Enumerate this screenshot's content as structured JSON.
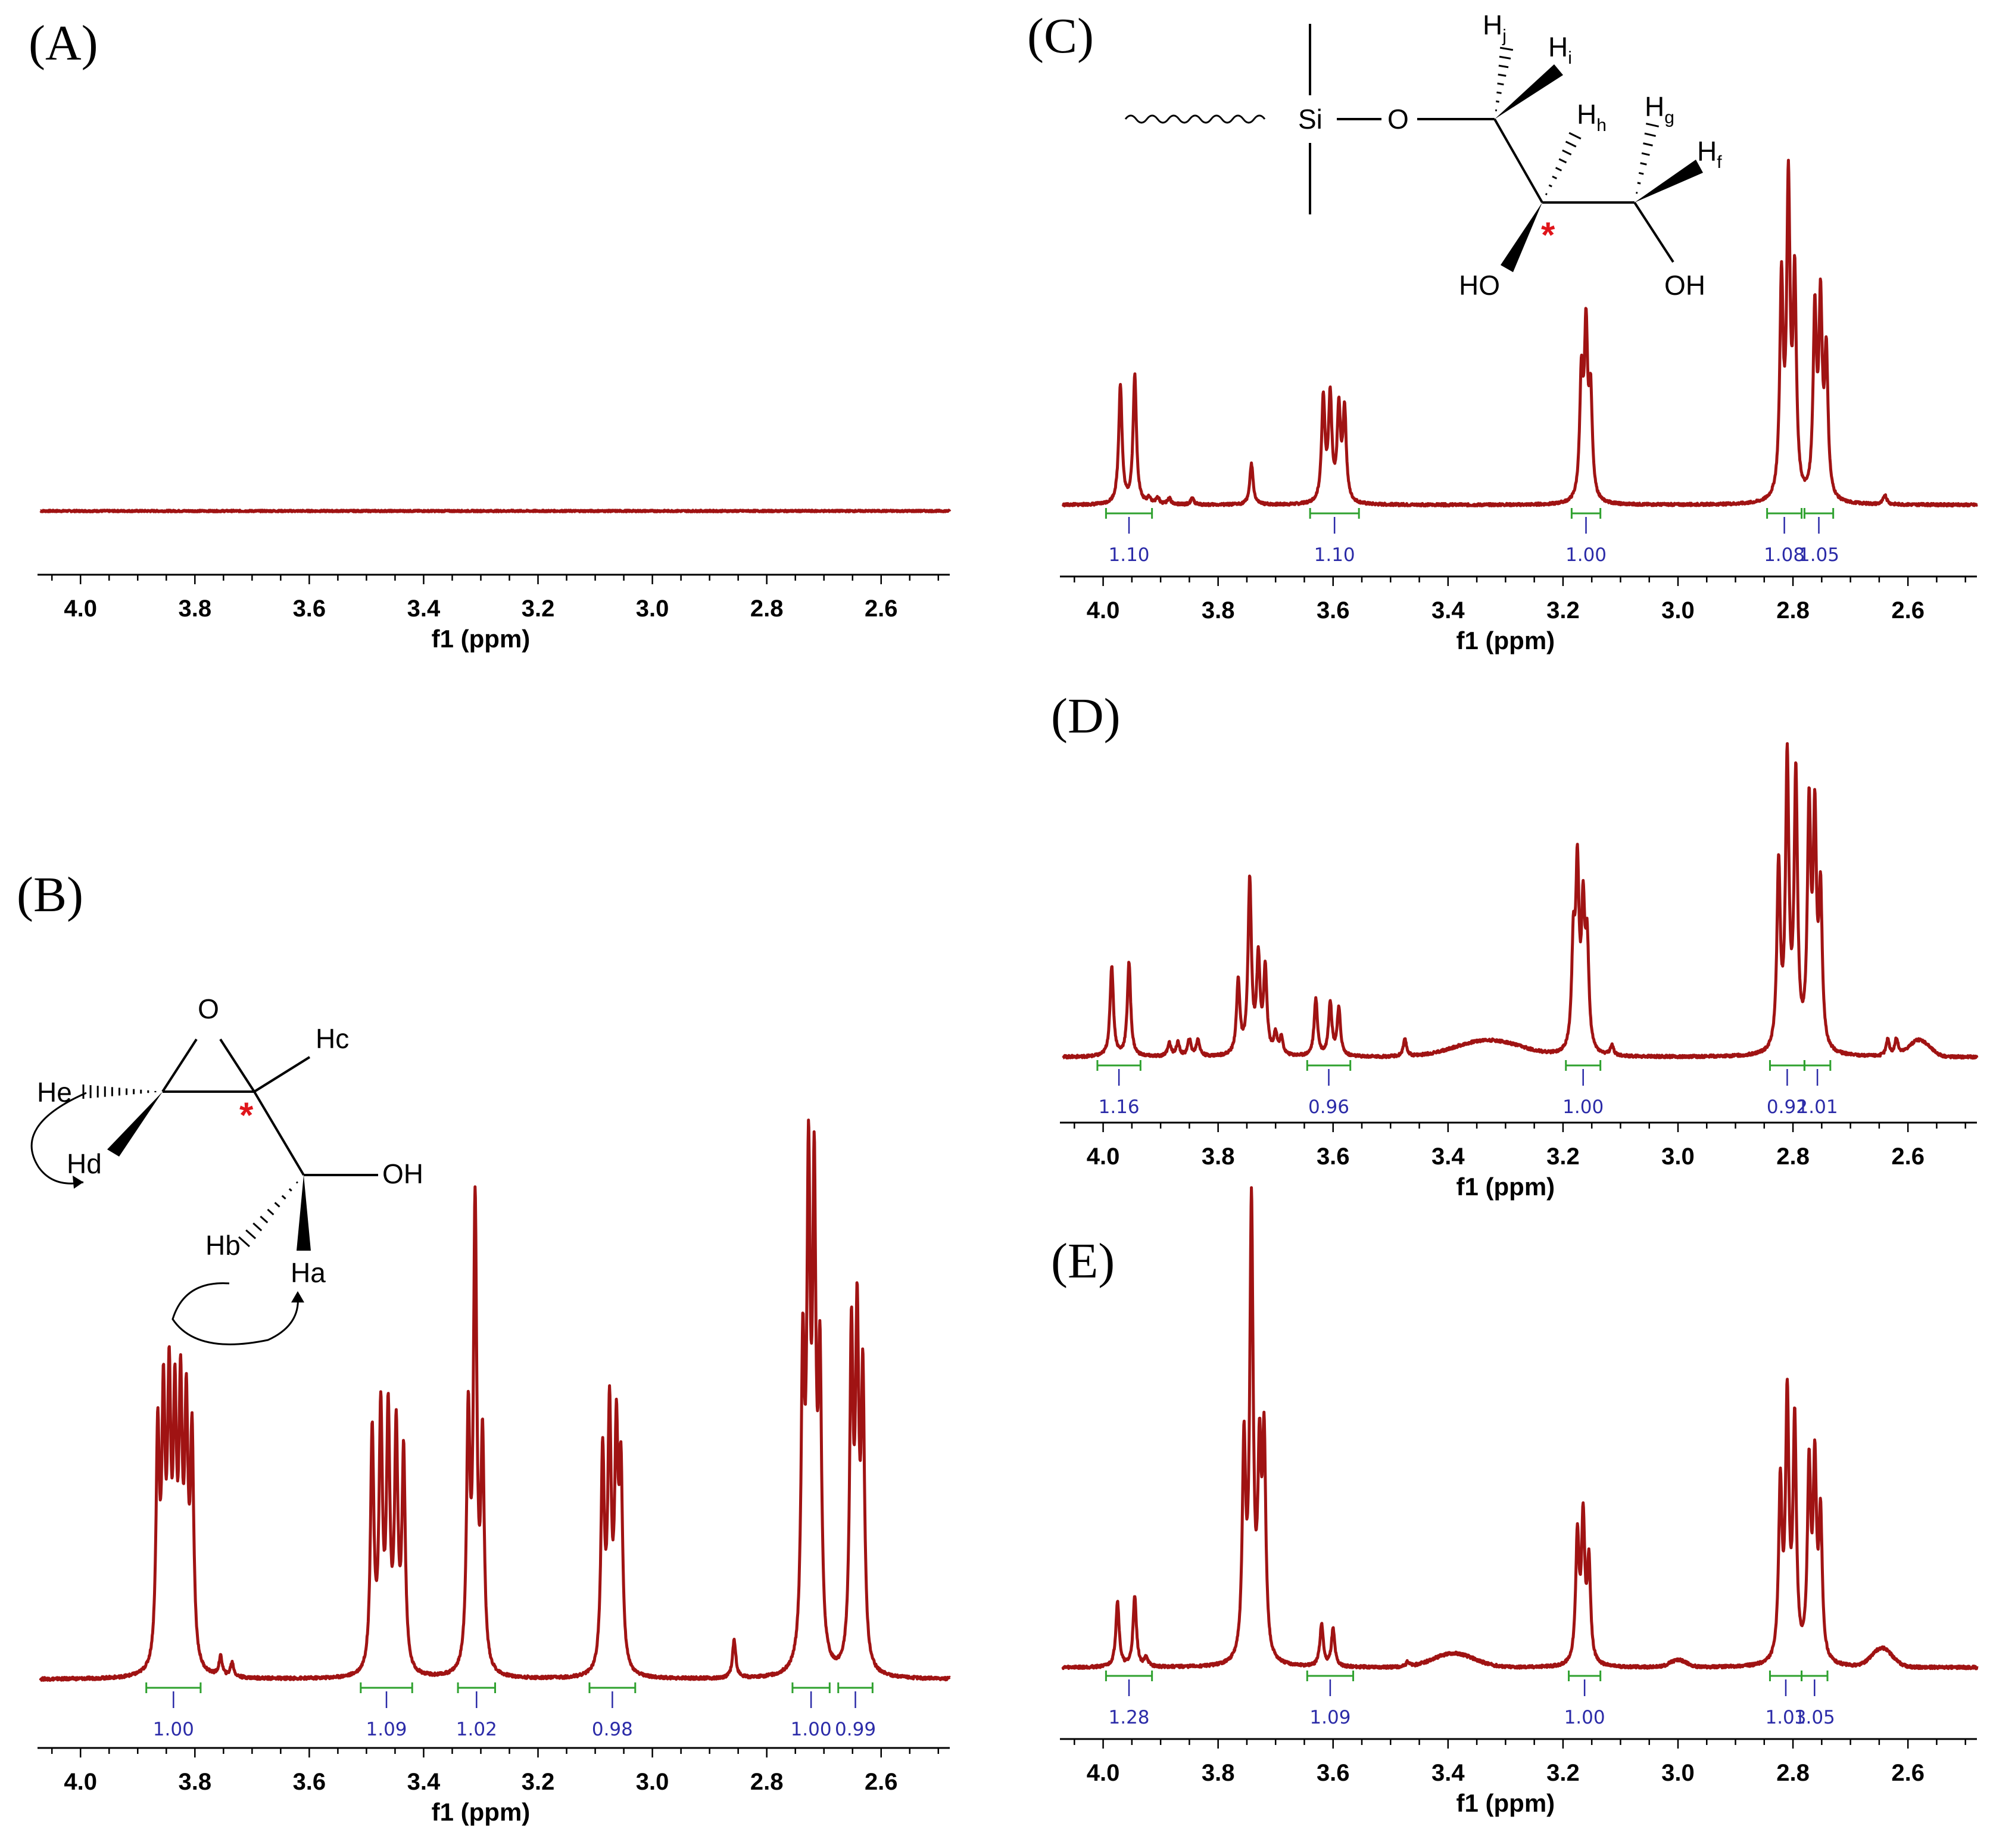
{
  "colors": {
    "spectrum": "#a01313",
    "integral_label": "#2b2ba8",
    "integral_bracket": "#2fa12f",
    "stereocenter": "#e0151b"
  },
  "chart_data": [
    {
      "id": "A",
      "panel_label": "(A)",
      "type": "line",
      "xlabel": "f1 (ppm)",
      "xlim": [
        4.07,
        2.48
      ],
      "ticks": [
        "4.0",
        "3.8",
        "3.6",
        "3.4",
        "3.2",
        "3.0",
        "2.8",
        "2.6"
      ],
      "baseline_noise": 0.002,
      "hump": [],
      "peaks": [],
      "integrals": []
    },
    {
      "id": "B",
      "panel_label": "(B)",
      "type": "line",
      "xlabel": "f1 (ppm)",
      "xlim": [
        4.07,
        2.48
      ],
      "ticks": [
        "4.0",
        "3.8",
        "3.6",
        "3.4",
        "3.2",
        "3.0",
        "2.8",
        "2.6"
      ],
      "baseline_noise": 0.003,
      "hump": [],
      "peaks": [
        [
          3.865,
          0.48
        ],
        [
          3.855,
          0.52
        ],
        [
          3.845,
          0.55
        ],
        [
          3.835,
          0.5
        ],
        [
          3.825,
          0.53
        ],
        [
          3.815,
          0.5
        ],
        [
          3.805,
          0.47
        ],
        [
          3.755,
          0.04
        ],
        [
          3.735,
          0.03
        ],
        [
          3.49,
          0.5
        ],
        [
          3.475,
          0.53
        ],
        [
          3.462,
          0.52
        ],
        [
          3.448,
          0.49
        ],
        [
          3.435,
          0.45
        ],
        [
          3.322,
          0.52
        ],
        [
          3.31,
          0.96
        ],
        [
          3.297,
          0.47
        ],
        [
          3.087,
          0.45
        ],
        [
          3.075,
          0.53
        ],
        [
          3.063,
          0.47
        ],
        [
          3.055,
          0.4
        ],
        [
          2.857,
          0.08
        ],
        [
          2.737,
          0.62
        ],
        [
          2.727,
          0.98
        ],
        [
          2.717,
          0.95
        ],
        [
          2.707,
          0.6
        ],
        [
          2.652,
          0.68
        ],
        [
          2.642,
          0.69
        ],
        [
          2.632,
          0.59
        ]
      ],
      "integrals": [
        {
          "from": 3.885,
          "to": 3.79,
          "value": "1.00"
        },
        {
          "from": 3.51,
          "to": 3.42,
          "value": "1.09"
        },
        {
          "from": 3.34,
          "to": 3.275,
          "value": "1.02"
        },
        {
          "from": 3.11,
          "to": 3.03,
          "value": "0.98"
        },
        {
          "from": 2.755,
          "to": 2.69,
          "value": "1.00"
        },
        {
          "from": 2.675,
          "to": 2.615,
          "value": "0.99"
        }
      ]
    },
    {
      "id": "C",
      "panel_label": "(C)",
      "type": "line",
      "xlabel": "f1 (ppm)",
      "xlim": [
        4.07,
        2.48
      ],
      "ticks": [
        "4.0",
        "3.8",
        "3.6",
        "3.4",
        "3.2",
        "3.0",
        "2.8",
        "2.6"
      ],
      "baseline_noise": 0.004,
      "hump": [],
      "peaks": [
        [
          3.97,
          0.38
        ],
        [
          3.945,
          0.41
        ],
        [
          3.92,
          0.02
        ],
        [
          3.905,
          0.02
        ],
        [
          3.885,
          0.02
        ],
        [
          3.845,
          0.02
        ],
        [
          3.742,
          0.13
        ],
        [
          3.617,
          0.33
        ],
        [
          3.605,
          0.33
        ],
        [
          3.59,
          0.29
        ],
        [
          3.58,
          0.29
        ],
        [
          3.168,
          0.38
        ],
        [
          3.16,
          0.52
        ],
        [
          3.152,
          0.32
        ],
        [
          2.82,
          0.68
        ],
        [
          2.808,
          0.98
        ],
        [
          2.797,
          0.68
        ],
        [
          2.762,
          0.58
        ],
        [
          2.752,
          0.6
        ],
        [
          2.742,
          0.45
        ],
        [
          2.64,
          0.03
        ]
      ],
      "integrals": [
        {
          "from": 3.995,
          "to": 3.915,
          "value": "1.10"
        },
        {
          "from": 3.64,
          "to": 3.555,
          "value": "1.10"
        },
        {
          "from": 3.185,
          "to": 3.135,
          "value": "1.00"
        },
        {
          "from": 2.845,
          "to": 2.785,
          "value": "1.08"
        },
        {
          "from": 2.78,
          "to": 2.73,
          "value": "1.05"
        }
      ]
    },
    {
      "id": "D",
      "panel_label": "(D)",
      "type": "line",
      "xlabel": "f1 (ppm)",
      "xlim": [
        4.07,
        2.48
      ],
      "ticks": [
        "4.0",
        "3.8",
        "3.6",
        "3.4",
        "3.2",
        "3.0",
        "2.8",
        "2.6"
      ],
      "baseline_noise": 0.004,
      "hump": [
        [
          3.33,
          0.05,
          0.08
        ],
        [
          2.58,
          0.05,
          0.025
        ]
      ],
      "peaks": [
        [
          3.985,
          0.27
        ],
        [
          3.955,
          0.28
        ],
        [
          3.885,
          0.04
        ],
        [
          3.87,
          0.04
        ],
        [
          3.85,
          0.05
        ],
        [
          3.835,
          0.05
        ],
        [
          3.765,
          0.22
        ],
        [
          3.745,
          0.52
        ],
        [
          3.73,
          0.28
        ],
        [
          3.718,
          0.25
        ],
        [
          3.7,
          0.06
        ],
        [
          3.69,
          0.05
        ],
        [
          3.63,
          0.17
        ],
        [
          3.605,
          0.16
        ],
        [
          3.59,
          0.14
        ],
        [
          3.475,
          0.05
        ],
        [
          3.182,
          0.3
        ],
        [
          3.175,
          0.52
        ],
        [
          3.165,
          0.4
        ],
        [
          3.158,
          0.3
        ],
        [
          3.115,
          0.03
        ],
        [
          2.825,
          0.55
        ],
        [
          2.81,
          0.86
        ],
        [
          2.795,
          0.81
        ],
        [
          2.772,
          0.7
        ],
        [
          2.762,
          0.66
        ],
        [
          2.752,
          0.45
        ],
        [
          2.635,
          0.05
        ],
        [
          2.62,
          0.05
        ]
      ],
      "integrals": [
        {
          "from": 4.01,
          "to": 3.935,
          "value": "1.16"
        },
        {
          "from": 3.645,
          "to": 3.57,
          "value": "0.96"
        },
        {
          "from": 3.195,
          "to": 3.135,
          "value": "1.00"
        },
        {
          "from": 2.84,
          "to": 2.78,
          "value": "0.92"
        },
        {
          "from": 2.78,
          "to": 2.735,
          "value": "1.01"
        }
      ]
    },
    {
      "id": "E",
      "panel_label": "(E)",
      "type": "line",
      "xlabel": "f1 (ppm)",
      "xlim": [
        4.07,
        2.48
      ],
      "ticks": [
        "4.0",
        "3.8",
        "3.6",
        "3.4",
        "3.2",
        "3.0",
        "2.8",
        "2.6"
      ],
      "baseline_noise": 0.003,
      "hump": [
        [
          3.39,
          0.03,
          0.05
        ],
        [
          3.0,
          0.015,
          0.02
        ],
        [
          2.645,
          0.04,
          0.025
        ]
      ],
      "peaks": [
        [
          3.975,
          0.14
        ],
        [
          3.945,
          0.15
        ],
        [
          3.925,
          0.02
        ],
        [
          3.755,
          0.45
        ],
        [
          3.742,
          0.96
        ],
        [
          3.728,
          0.4
        ],
        [
          3.72,
          0.45
        ],
        [
          3.62,
          0.09
        ],
        [
          3.6,
          0.08
        ],
        [
          3.47,
          0.01
        ],
        [
          3.175,
          0.27
        ],
        [
          3.165,
          0.3
        ],
        [
          3.155,
          0.21
        ],
        [
          2.822,
          0.37
        ],
        [
          2.81,
          0.55
        ],
        [
          2.797,
          0.5
        ],
        [
          2.772,
          0.4
        ],
        [
          2.762,
          0.4
        ],
        [
          2.752,
          0.3
        ]
      ],
      "integrals": [
        {
          "from": 3.995,
          "to": 3.915,
          "value": "1.28"
        },
        {
          "from": 3.645,
          "to": 3.565,
          "value": "1.09"
        },
        {
          "from": 3.19,
          "to": 3.135,
          "value": "1.00"
        },
        {
          "from": 2.84,
          "to": 2.785,
          "value": "1.03"
        },
        {
          "from": 2.785,
          "to": 2.74,
          "value": "1.05"
        }
      ]
    }
  ],
  "structure_B": {
    "O": "O",
    "Hc": "Hc",
    "He": "He",
    "Hd": "Hd",
    "OH": "OH",
    "Hb": "Hb",
    "Ha": "Ha",
    "star": "*"
  },
  "structure_C": {
    "Si": "Si",
    "O": "O",
    "H": "H",
    "sub_j": "j",
    "sub_i": "i",
    "sub_h": "h",
    "sub_g": "g",
    "sub_f": "f",
    "HO": "HO",
    "OH": "OH",
    "star": "*"
  }
}
